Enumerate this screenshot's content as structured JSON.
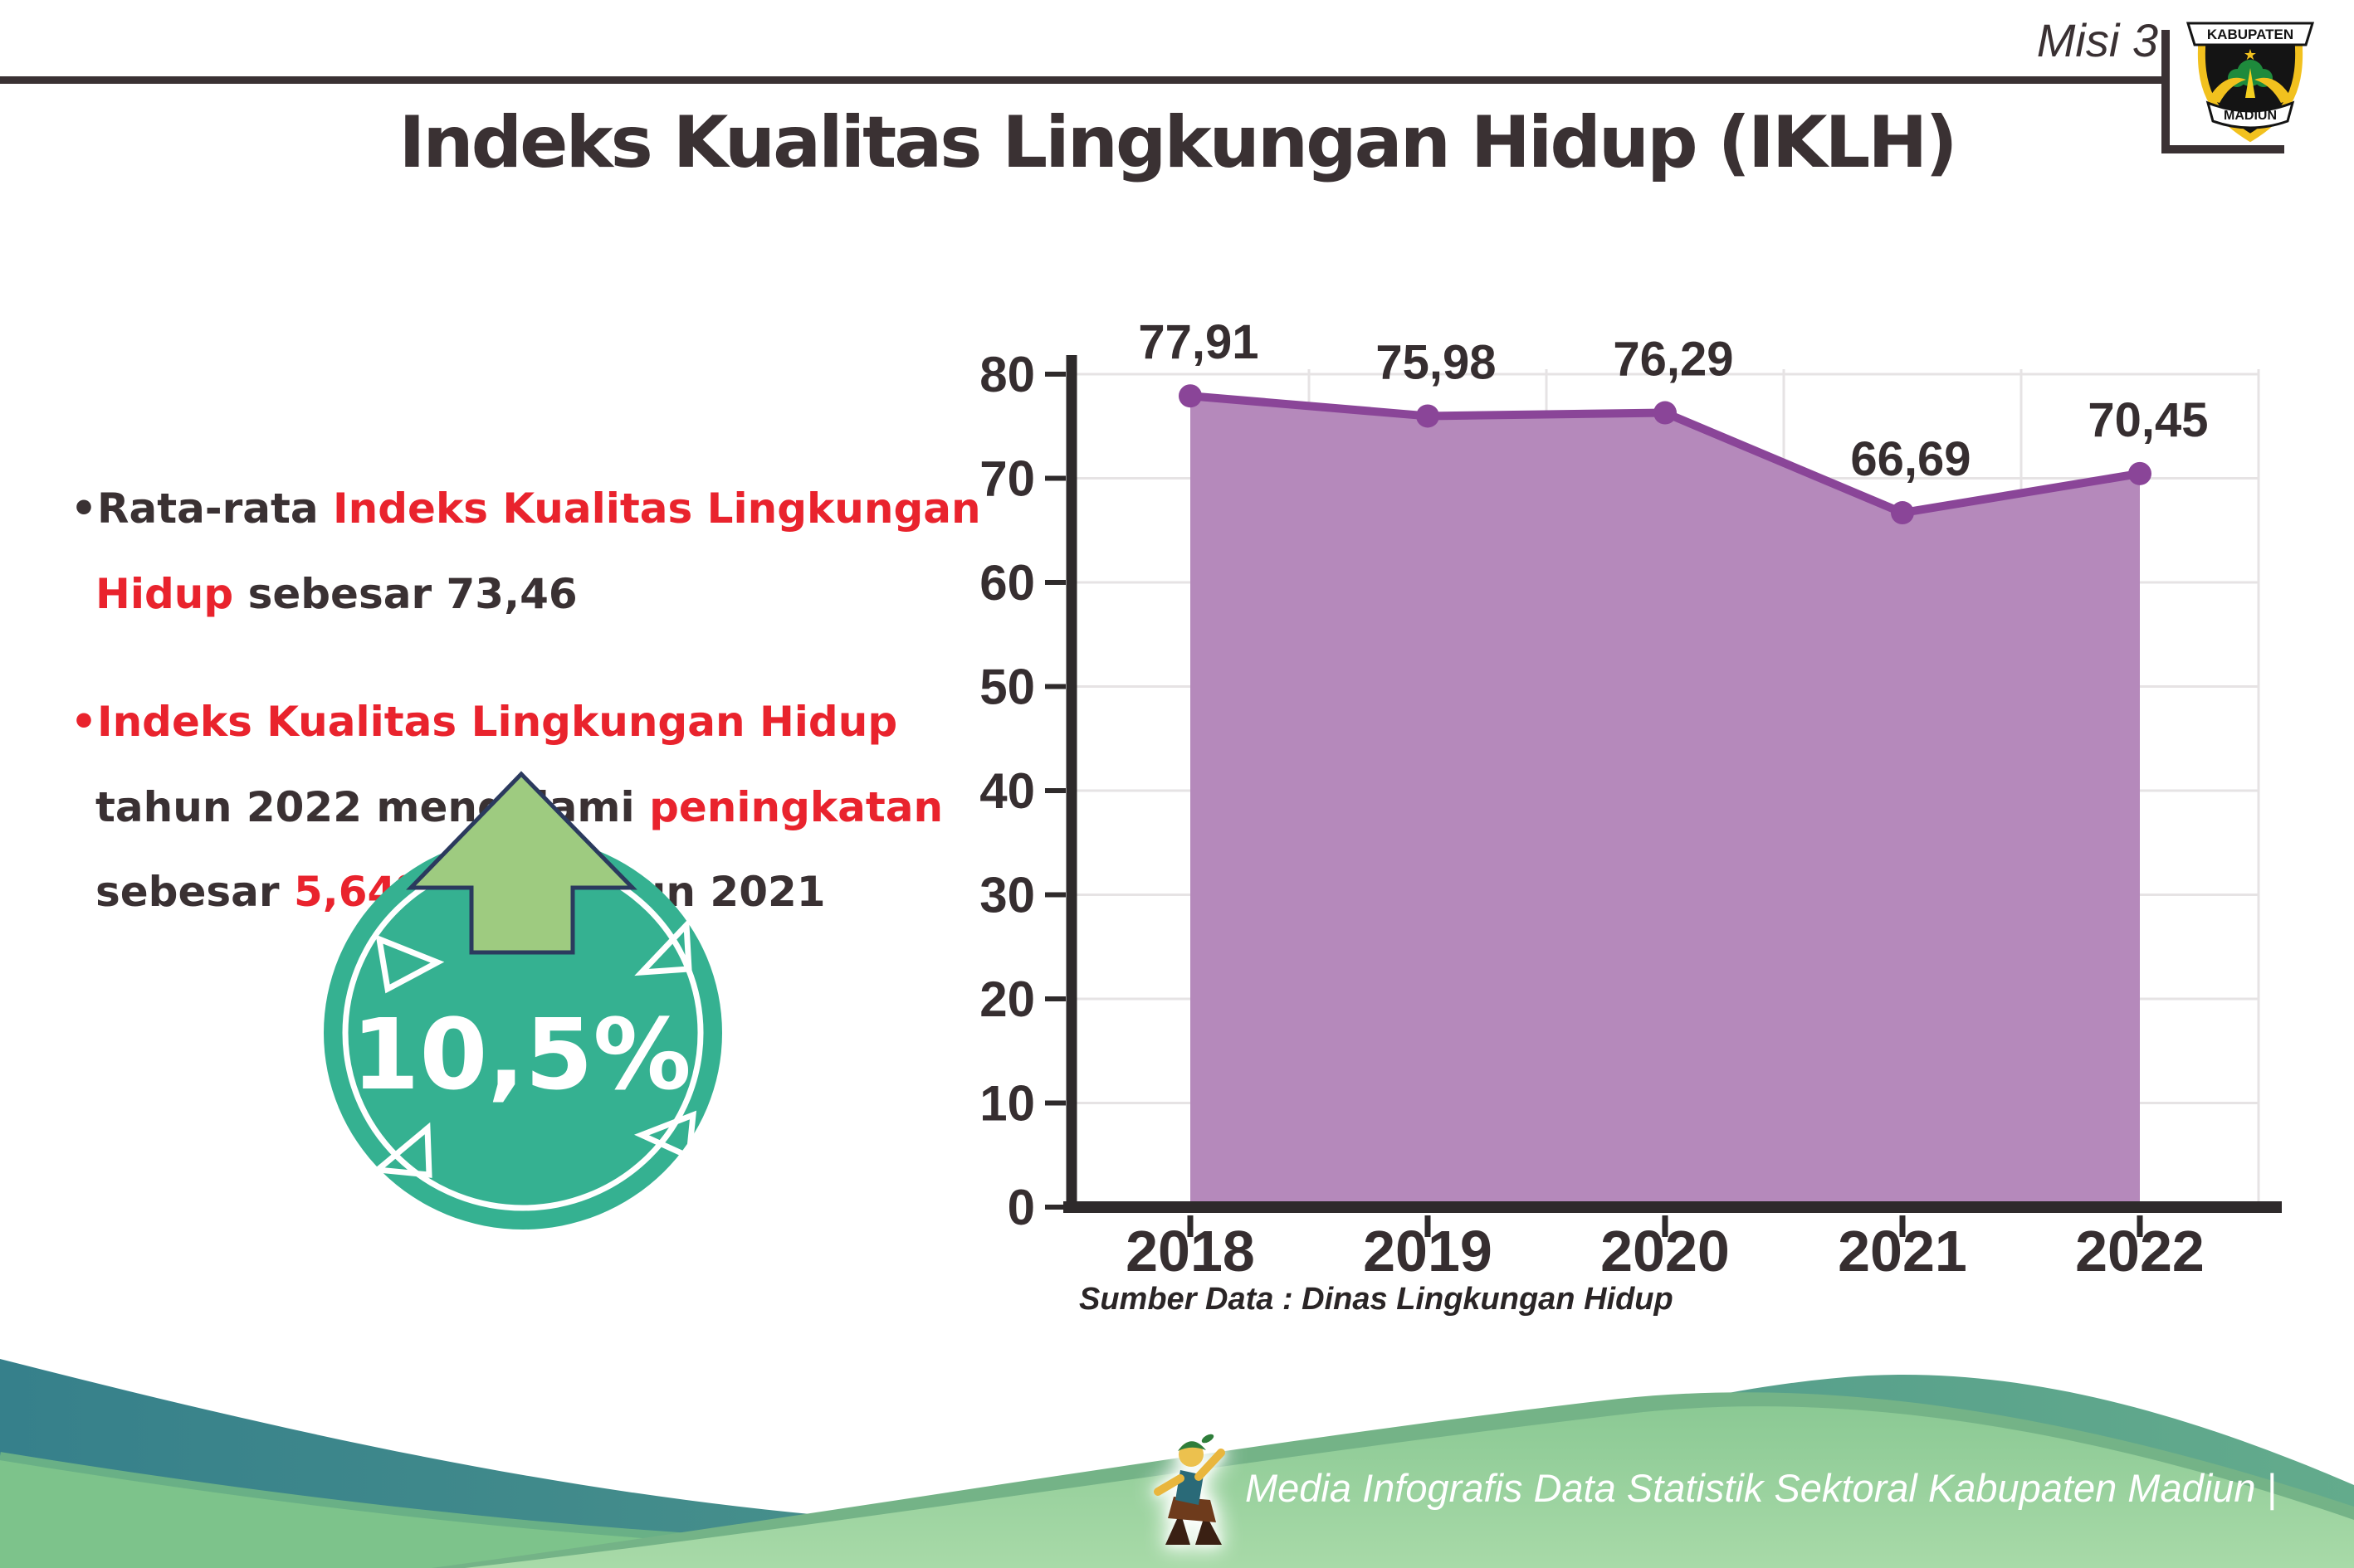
{
  "header": {
    "misi_label": "Misi 3",
    "logo": {
      "top_text": "KABUPATEN",
      "bottom_text": "MADIUN"
    }
  },
  "title": "Indeks Kualitas Lingkungan Hidup (IKLH)",
  "bullets": [
    {
      "segments": [
        {
          "text": "•Rata-rata ",
          "color": "dark"
        },
        {
          "text": "Indeks Kualitas Lingkungan Hidup",
          "color": "red"
        },
        {
          "text": " sebesar 73,46",
          "color": "dark"
        }
      ]
    },
    {
      "segments": [
        {
          "text": "•",
          "color": "red"
        },
        {
          "text": "Indeks Kualitas Lingkungan Hidup",
          "color": "red"
        },
        {
          "text": " tahun 2022 mengalami ",
          "color": "dark"
        },
        {
          "text": "peningkatan",
          "color": "red"
        },
        {
          "text": " sebesar ",
          "color": "dark"
        },
        {
          "text": "5,64%",
          "color": "red"
        },
        {
          "text": " dari tahun 2021",
          "color": "dark"
        }
      ]
    }
  ],
  "badge": {
    "value": "10,5%",
    "direction": "up"
  },
  "chart_data": {
    "type": "area",
    "categories": [
      "2018",
      "2019",
      "2020",
      "2021",
      "2022"
    ],
    "values": [
      77.91,
      75.98,
      76.29,
      66.69,
      70.45
    ],
    "value_labels": [
      "77,91",
      "75,98",
      "76,29",
      "66,69",
      "70,45"
    ],
    "title": "",
    "xlabel": "",
    "ylabel": "",
    "ylim": [
      0,
      80
    ],
    "ytick_step": 10,
    "grid": true,
    "legend": false,
    "source": "Sumber Data : Dinas Lingkungan Hidup",
    "colors": {
      "area_fill": "#b589bb",
      "line": "#8a4598",
      "marker": "#8a4598",
      "axis": "#2e2a2b",
      "grid": "#e6e3e4",
      "label": "#362e30"
    }
  },
  "footer": {
    "caption": "Media Infografis Data Statistik Sektoral Kabupaten Madiun |"
  },
  "colors": {
    "accent_red": "#e9232d",
    "text_dark": "#3a3133",
    "badge_teal": "#35b191",
    "arrow_green": "#9ecb80",
    "arrow_outline": "#2b3a5e",
    "footer_teal": "#36808b",
    "footer_green": "#8bc994"
  }
}
